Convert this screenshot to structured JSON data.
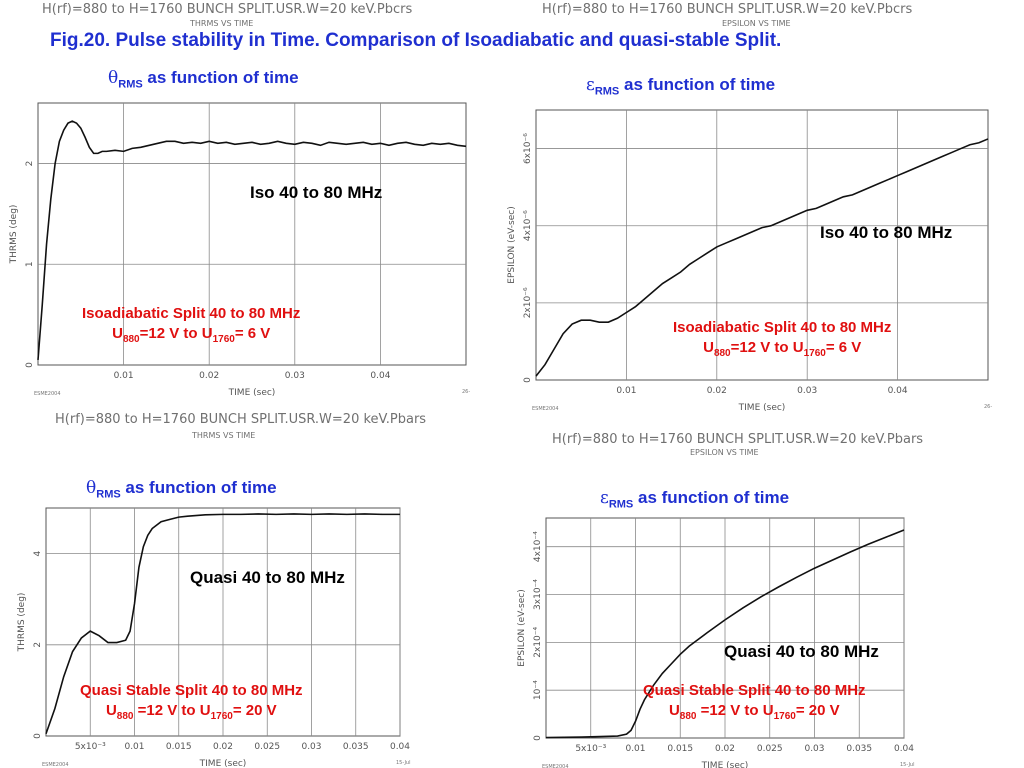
{
  "figure": {
    "title": "Fig.20. Pulse stability in Time.  Comparison of Isoadiabatic and quasi-stable Split.",
    "run_title": "H(rf)=880 to H=1760 BUNCH SPLIT.USR.W=20 keV.Pbcrs",
    "run_title_lower": "H(rf)=880 to H=1760 BUNCH SPLIT.USR.W=20 keV.Pbars",
    "colors": {
      "title": "#1f2fd0",
      "note": "#e01010",
      "curve": "#111111"
    }
  },
  "panels": [
    {
      "header": "H(rf)=880 to H=1760 BUNCH SPLIT.USR.W=20 keV.Pbcrs",
      "subheader": "THRMS VS TIME",
      "title_symbol": "θ",
      "title_sub": "RMS",
      "title_rest": " as function of time",
      "inline_label": "Iso 40 to 80 MHz",
      "note_line1": "Isoadiabatic Split 40 to 80 MHz",
      "note_u1": "U",
      "note_sub1": "880",
      "note_mid": "=12 V to U",
      "note_sub2": "1760",
      "note_end": "= 6 V",
      "footer_left": "ESME2004",
      "footer_right": "26-"
    },
    {
      "header": "H(rf)=880 to H=1760 BUNCH SPLIT.USR.W=20 keV.Pbcrs",
      "subheader": "EPSILON VS TIME",
      "title_symbol": "ε",
      "title_sub": "RMS",
      "title_rest": " as function of time",
      "inline_label": "Iso 40 to 80 MHz",
      "note_line1": "Isoadiabatic Split 40 to 80 MHz",
      "note_u1": "U",
      "note_sub1": "880",
      "note_mid": "=12 V to U",
      "note_sub2": "1760",
      "note_end": "= 6 V",
      "footer_left": "ESME2004",
      "footer_right": "26-"
    },
    {
      "header": "H(rf)=880 to H=1760 BUNCH SPLIT.USR.W=20 keV.Pbars",
      "subheader": "THRMS VS TIME",
      "title_symbol": "θ",
      "title_sub": "RMS",
      "title_rest": " as function of time",
      "inline_label": "Quasi 40 to 80 MHz",
      "note_line1": "Quasi Stable Split 40 to 80 MHz",
      "note_u1": "U",
      "note_sub1": "880",
      "note_mid": " =12 V to U",
      "note_sub2": "1760",
      "note_end": "= 20 V",
      "footer_left": "ESME2004",
      "footer_right": "15-Jul"
    },
    {
      "header": "H(rf)=880 to H=1760 BUNCH SPLIT.USR.W=20 keV.Pbars",
      "subheader": "EPSILON VS TIME",
      "title_symbol": "ε",
      "title_sub": "RMS",
      "title_rest": " as function of time",
      "inline_label": "Quasi 40 to 80 MHz",
      "note_line1": "Quasi Stable Split 40 to 80 MHz",
      "note_u1": "U",
      "note_sub1": "880",
      "note_mid": " =12 V to U",
      "note_sub2": "1760",
      "note_end": "= 20 V",
      "footer_left": "ESME2004",
      "footer_right": "15-Jul"
    }
  ],
  "chart_data": [
    {
      "type": "line",
      "xlabel": "TIME (sec)",
      "ylabel": "THRMS (deg)",
      "xlim": [
        0,
        0.05
      ],
      "ylim": [
        0,
        2.6
      ],
      "xticks": [
        0.01,
        0.02,
        0.03,
        0.04
      ],
      "xtick_labels": [
        "0.01",
        "0.02",
        "0.03",
        "0.04"
      ],
      "yticks": [
        0,
        1,
        2
      ],
      "ytick_labels": [
        "0",
        "1",
        "2"
      ],
      "grid": true,
      "series": [
        {
          "x": [
            0,
            0.0005,
            0.001,
            0.0015,
            0.002,
            0.0025,
            0.003,
            0.0035,
            0.004,
            0.0045,
            0.005,
            0.0055,
            0.006,
            0.0065,
            0.007,
            0.0075,
            0.008,
            0.009,
            0.01,
            0.011,
            0.012,
            0.013,
            0.014,
            0.015,
            0.016,
            0.017,
            0.018,
            0.019,
            0.02,
            0.021,
            0.022,
            0.023,
            0.024,
            0.025,
            0.026,
            0.027,
            0.028,
            0.029,
            0.03,
            0.031,
            0.032,
            0.033,
            0.034,
            0.035,
            0.036,
            0.037,
            0.038,
            0.039,
            0.04,
            0.041,
            0.042,
            0.043,
            0.044,
            0.045,
            0.046,
            0.047,
            0.048,
            0.049,
            0.05
          ],
          "y": [
            0.05,
            0.6,
            1.2,
            1.65,
            2.0,
            2.22,
            2.33,
            2.4,
            2.42,
            2.4,
            2.35,
            2.26,
            2.16,
            2.1,
            2.1,
            2.12,
            2.12,
            2.13,
            2.12,
            2.15,
            2.16,
            2.18,
            2.2,
            2.22,
            2.22,
            2.2,
            2.21,
            2.2,
            2.22,
            2.2,
            2.21,
            2.19,
            2.2,
            2.21,
            2.19,
            2.2,
            2.22,
            2.2,
            2.19,
            2.21,
            2.2,
            2.18,
            2.21,
            2.2,
            2.19,
            2.2,
            2.21,
            2.19,
            2.2,
            2.18,
            2.2,
            2.21,
            2.19,
            2.18,
            2.2,
            2.19,
            2.2,
            2.18,
            2.17
          ]
        }
      ]
    },
    {
      "type": "line",
      "xlabel": "TIME (sec)",
      "ylabel": "EPSILON (eV-sec)",
      "xlim": [
        0,
        0.05
      ],
      "ylim": [
        0,
        7e-06
      ],
      "xticks": [
        0.01,
        0.02,
        0.03,
        0.04
      ],
      "xtick_labels": [
        "0.01",
        "0.02",
        "0.03",
        "0.04"
      ],
      "yticks": [
        0,
        2e-06,
        4e-06,
        6e-06
      ],
      "ytick_labels": [
        "0",
        "2x10⁻⁶",
        "4x10⁻⁶",
        "6x10⁻⁶"
      ],
      "grid": true,
      "series": [
        {
          "x": [
            0,
            0.001,
            0.002,
            0.003,
            0.004,
            0.005,
            0.006,
            0.007,
            0.008,
            0.009,
            0.01,
            0.011,
            0.012,
            0.013,
            0.014,
            0.015,
            0.016,
            0.017,
            0.018,
            0.019,
            0.02,
            0.021,
            0.022,
            0.023,
            0.024,
            0.025,
            0.026,
            0.027,
            0.028,
            0.029,
            0.03,
            0.031,
            0.032,
            0.033,
            0.034,
            0.035,
            0.036,
            0.037,
            0.038,
            0.039,
            0.04,
            0.041,
            0.042,
            0.043,
            0.044,
            0.045,
            0.046,
            0.047,
            0.048,
            0.049,
            0.05
          ],
          "y": [
            1e-07,
            4e-07,
            8e-07,
            1.2e-06,
            1.45e-06,
            1.55e-06,
            1.55e-06,
            1.5e-06,
            1.5e-06,
            1.6e-06,
            1.75e-06,
            1.9e-06,
            2.1e-06,
            2.3e-06,
            2.5e-06,
            2.65e-06,
            2.8e-06,
            3e-06,
            3.15e-06,
            3.3e-06,
            3.45e-06,
            3.55e-06,
            3.65e-06,
            3.75e-06,
            3.85e-06,
            3.95e-06,
            4e-06,
            4.1e-06,
            4.2e-06,
            4.3e-06,
            4.4e-06,
            4.45e-06,
            4.55e-06,
            4.65e-06,
            4.75e-06,
            4.8e-06,
            4.9e-06,
            5e-06,
            5.1e-06,
            5.2e-06,
            5.3e-06,
            5.4e-06,
            5.5e-06,
            5.6e-06,
            5.7e-06,
            5.8e-06,
            5.9e-06,
            6e-06,
            6.1e-06,
            6.15e-06,
            6.25e-06
          ]
        }
      ]
    },
    {
      "type": "line",
      "xlabel": "TIME (sec)",
      "ylabel": "THRMS (deg)",
      "xlim": [
        0,
        0.04
      ],
      "ylim": [
        0,
        5.0
      ],
      "xticks": [
        0.005,
        0.01,
        0.015,
        0.02,
        0.025,
        0.03,
        0.035,
        0.04
      ],
      "xtick_labels": [
        "5x10⁻³",
        "0.01",
        "0.015",
        "0.02",
        "0.025",
        "0.03",
        "0.035",
        "0.04"
      ],
      "yticks": [
        0,
        2,
        4
      ],
      "ytick_labels": [
        "0",
        "2",
        "4"
      ],
      "grid": true,
      "series": [
        {
          "x": [
            0,
            0.001,
            0.002,
            0.003,
            0.004,
            0.005,
            0.006,
            0.007,
            0.008,
            0.009,
            0.0095,
            0.01,
            0.0105,
            0.011,
            0.0115,
            0.012,
            0.013,
            0.014,
            0.015,
            0.016,
            0.018,
            0.02,
            0.022,
            0.024,
            0.026,
            0.028,
            0.03,
            0.032,
            0.034,
            0.036,
            0.038,
            0.04
          ],
          "y": [
            0.05,
            0.6,
            1.3,
            1.85,
            2.15,
            2.3,
            2.2,
            2.05,
            2.05,
            2.1,
            2.3,
            2.9,
            3.7,
            4.15,
            4.4,
            4.55,
            4.7,
            4.75,
            4.8,
            4.82,
            4.85,
            4.86,
            4.86,
            4.87,
            4.86,
            4.87,
            4.86,
            4.87,
            4.86,
            4.87,
            4.86,
            4.86
          ]
        }
      ]
    },
    {
      "type": "line",
      "xlabel": "TIME (sec)",
      "ylabel": "EPSILON (eV-sec)",
      "xlim": [
        0,
        0.04
      ],
      "ylim": [
        0,
        0.00046
      ],
      "xticks": [
        0.005,
        0.01,
        0.015,
        0.02,
        0.025,
        0.03,
        0.035,
        0.04
      ],
      "xtick_labels": [
        "5x10⁻³",
        "0.01",
        "0.015",
        "0.02",
        "0.025",
        "0.03",
        "0.035",
        "0.04"
      ],
      "yticks": [
        0,
        0.0001,
        0.0002,
        0.0003,
        0.0004
      ],
      "ytick_labels": [
        "0",
        "10⁻⁴",
        "2x10⁻⁴",
        "3x10⁻⁴",
        "4x10⁻⁴"
      ],
      "grid": true,
      "series": [
        {
          "x": [
            0,
            0.004,
            0.008,
            0.009,
            0.0095,
            0.01,
            0.0105,
            0.011,
            0.012,
            0.013,
            0.014,
            0.015,
            0.016,
            0.018,
            0.02,
            0.022,
            0.024,
            0.026,
            0.028,
            0.03,
            0.032,
            0.034,
            0.036,
            0.038,
            0.04
          ],
          "y": [
            1e-06,
            2e-06,
            4e-06,
            8e-06,
            1.6e-05,
            3.5e-05,
            6e-05,
            8e-05,
            0.00011,
            0.000135,
            0.000155,
            0.000175,
            0.000192,
            0.00022,
            0.000247,
            0.000272,
            0.000295,
            0.000316,
            0.000336,
            0.000355,
            0.000372,
            0.000389,
            0.000405,
            0.00042,
            0.000435
          ]
        }
      ]
    }
  ]
}
